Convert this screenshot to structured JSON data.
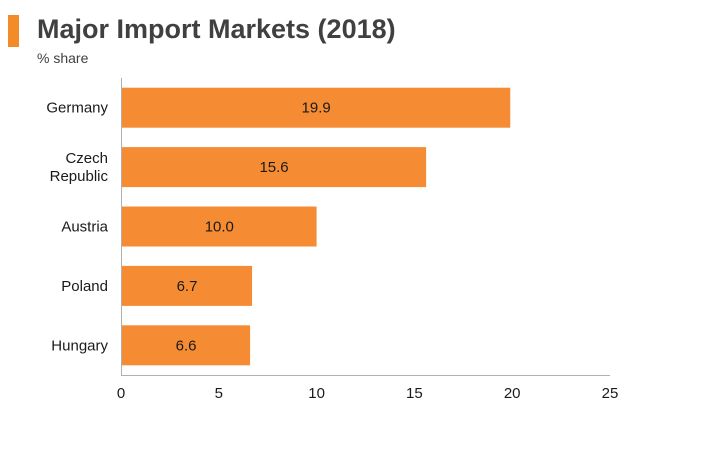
{
  "header": {
    "title": "Major Import Markets (2018)",
    "subtitle": "% share"
  },
  "colors": {
    "accent": "#f28c28",
    "bar": "#f58c33",
    "axis": "#b0b0b0",
    "text": "#404040"
  },
  "chart_data": {
    "type": "bar",
    "orientation": "horizontal",
    "title": "Major Import Markets (2018)",
    "subtitle": "% share",
    "categories": [
      "Germany",
      "Czech\nRepublic",
      "Austria",
      "Poland",
      "Hungary"
    ],
    "values": [
      19.9,
      15.6,
      10.0,
      6.7,
      6.6
    ],
    "value_labels": [
      "19.9",
      "15.6",
      "10.0",
      "6.7",
      "6.6"
    ],
    "xlim": [
      0,
      25
    ],
    "x_ticks": [
      0,
      5,
      10,
      15,
      20,
      25
    ],
    "xlabel": "",
    "ylabel": "",
    "grid": false,
    "legend": "none"
  }
}
